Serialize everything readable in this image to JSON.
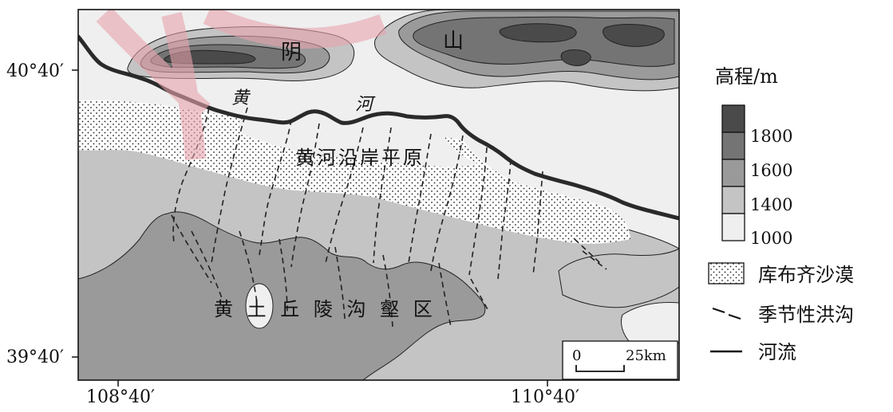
{
  "map": {
    "place_labels": {
      "yinshan_1": "阴",
      "yinshan_2": "山",
      "huanghe_1": "黄",
      "huanghe_2": "河",
      "plain": "黄河沿岸平原",
      "loess": "黄 土 丘 陵 沟 壑 区"
    },
    "coordinates": {
      "lat_top": "40°40′",
      "lat_bottom": "39°40′",
      "lon_left": "108°40′",
      "lon_right": "110°40′"
    },
    "scale_bar": {
      "zero": "0",
      "distance": "25km"
    }
  },
  "legend": {
    "title": "高程/m",
    "elevation_ticks": [
      "1800",
      "1600",
      "1400",
      "1000"
    ],
    "elevation_colors": [
      "#4a4a4a",
      "#747474",
      "#9a9a9a",
      "#c4c4c4",
      "#efefef"
    ],
    "desert_label": "库布齐沙漠",
    "gully_label": "季节性洪沟",
    "river_label": "河流"
  },
  "colors": {
    "watermark": "#e7a3ad",
    "river": "#2a2a2a"
  }
}
